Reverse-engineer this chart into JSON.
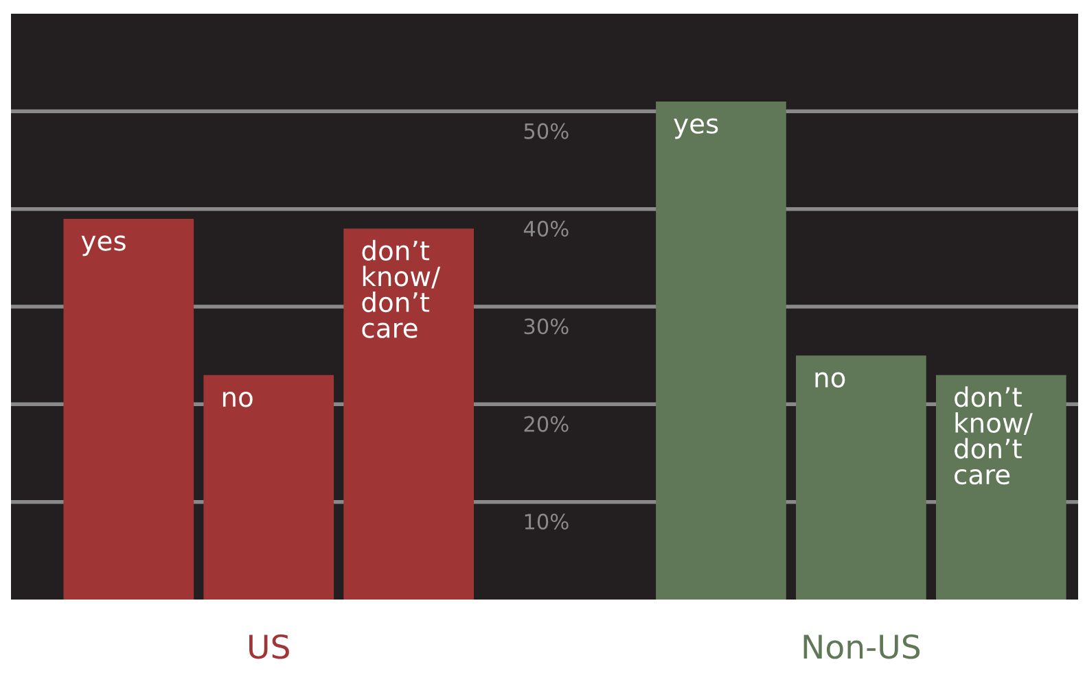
{
  "chart_data": {
    "type": "bar",
    "categories": [
      "US",
      "Non-US"
    ],
    "series": [
      {
        "name": "yes",
        "colors": [
          "#a03535",
          "#607857"
        ],
        "values": [
          39,
          51
        ]
      },
      {
        "name": "no",
        "colors": [
          "#a03535",
          "#607857"
        ],
        "values": [
          23,
          25
        ]
      },
      {
        "name": "don’t\nknow/\ndon’t\ncare",
        "colors": [
          "#a03535",
          "#607857"
        ],
        "values": [
          38,
          23
        ]
      }
    ],
    "ylim": [
      0,
      60
    ],
    "yticks": [
      {
        "value": 10,
        "label": "10%"
      },
      {
        "value": 20,
        "label": "20%"
      },
      {
        "value": 30,
        "label": "30%"
      },
      {
        "value": 40,
        "label": "40%"
      },
      {
        "value": 50,
        "label": "50%"
      }
    ],
    "grid": "y",
    "legend": false
  }
}
